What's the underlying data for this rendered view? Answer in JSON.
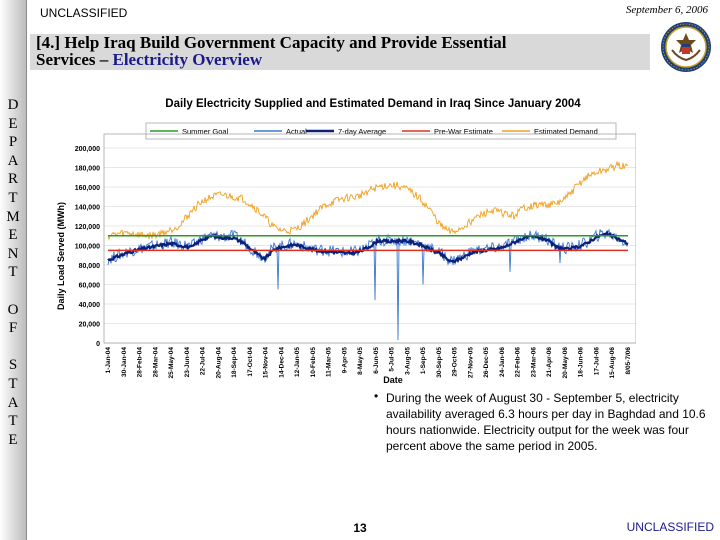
{
  "header": {
    "classification": "UNCLASSIFIED",
    "date": "September 6, 2006",
    "title_line1": "[4.] Help Iraq Build Government Capacity and Provide Essential",
    "title_line2_prefix": "Services – ",
    "title_line2_accent": "Electricity Overview"
  },
  "sidebar": {
    "letters": [
      "D",
      "E",
      "P",
      "A",
      "R",
      "T",
      "M",
      "E",
      "N",
      "T",
      " ",
      "O",
      "F",
      " ",
      "S",
      "T",
      "A",
      "T",
      "E"
    ]
  },
  "bullet": {
    "symbol": "•",
    "text": "During the week of August 30 - September 5, electricity availability averaged 6.3 hours per day in Baghdad and 10.6 hours nationwide.  Electricity output for the week was four percent above the same period in 2005."
  },
  "footer": {
    "page_number": "13",
    "classification": "UNCLASSIFIED"
  },
  "colors": {
    "summer_goal": "#2a9a2a",
    "actual": "#3a78d0",
    "seven_day": "#0c1f7a",
    "pre_war": "#e03020",
    "estimated_demand": "#f0a020",
    "text_accent": "#1a1a8c"
  },
  "chart_data": {
    "type": "line",
    "title": "Daily Electricity Supplied and Estimated Demand in Iraq Since January 2004",
    "xlabel": "Date",
    "ylabel": "Daily Load Served (MWh)",
    "ylim": [
      0,
      200000
    ],
    "yticks": [
      "0",
      "20,000",
      "40,000",
      "60,000",
      "80,000",
      "100,000",
      "120,000",
      "140,000",
      "160,000",
      "180,000",
      "200,000"
    ],
    "xticks": [
      "1-Jan-04",
      "30-Jan-04",
      "28-Feb-04",
      "28-Mar-04",
      "25-May-04",
      "23-Jun-04",
      "22-Jul-04",
      "20-Aug-04",
      "18-Sep-04",
      "17-Oct-04",
      "15-Nov-04",
      "14-Dec-04",
      "12-Jan-05",
      "10-Feb-05",
      "11-Mar-05",
      "9-Apr-05",
      "8-May-05",
      "6-Jun-05",
      "5-Jul-05",
      "3-Aug-05",
      "1-Sep-05",
      "30-Sep-05",
      "29-Oct-05",
      "27-Nov-05",
      "26-Dec-05",
      "24-Jan-06",
      "22-Feb-06",
      "23-Mar-06",
      "21-Apr-06",
      "20-May-06",
      "18-Jun-06",
      "17-Jul-06",
      "15-Aug-06",
      "8/05-7/06"
    ],
    "grid": "horizontal",
    "legend_position": "top",
    "series": [
      {
        "name": "Summer Goal",
        "style": "constant",
        "values": [
          110000,
          110000
        ]
      },
      {
        "name": "Actual",
        "style": "daily",
        "values": [
          86000,
          90000,
          94000,
          97000,
          99000,
          101000,
          103000,
          101000,
          99000,
          107000,
          110000,
          109000,
          110000,
          104000,
          95000,
          88000,
          98000,
          100000,
          102000,
          98000,
          96000,
          95000,
          94000,
          93000,
          94000,
          99000,
          106000,
          105000,
          106000,
          105000,
          102000,
          97000,
          92000,
          84000,
          88000,
          94000,
          96000,
          97000,
          99000,
          104000,
          109000,
          110000,
          108000,
          100000,
          97000,
          99000,
          103000,
          110000,
          113000,
          108000,
          102000
        ],
        "dips": [
          [
            0.327,
            55000
          ],
          [
            0.513,
            44000
          ],
          [
            0.558,
            3000
          ],
          [
            0.606,
            60000
          ],
          [
            0.773,
            73000
          ],
          [
            0.869,
            82000
          ]
        ]
      },
      {
        "name": "7-day Average",
        "style": "smooth",
        "values": [
          85000,
          89000,
          93000,
          96000,
          98000,
          100000,
          102000,
          100000,
          98000,
          106000,
          110000,
          108000,
          108000,
          103000,
          94000,
          86000,
          96000,
          99000,
          101000,
          98000,
          95000,
          94000,
          93000,
          92000,
          93000,
          98000,
          105000,
          104000,
          105000,
          104000,
          101000,
          96000,
          91000,
          83000,
          87000,
          93000,
          95000,
          96000,
          98000,
          103000,
          108000,
          109000,
          107000,
          99000,
          96000,
          98000,
          102000,
          109000,
          112000,
          107000,
          102000
        ]
      },
      {
        "name": "Pre-War Estimate",
        "style": "constant",
        "values": [
          95000,
          95000
        ]
      },
      {
        "name": "Estimated Demand",
        "style": "daily",
        "values": [
          110000,
          112000,
          113000,
          111000,
          110000,
          112000,
          116000,
          122000,
          135000,
          145000,
          150000,
          152000,
          150000,
          148000,
          140000,
          130000,
          118000,
          115000,
          116000,
          124000,
          134000,
          142000,
          146000,
          149000,
          150000,
          156000,
          160000,
          162000,
          161000,
          156000,
          148000,
          136000,
          120000,
          113000,
          118000,
          126000,
          132000,
          136000,
          133000,
          130000,
          139000,
          141000,
          142000,
          142000,
          148000,
          160000,
          170000,
          175000,
          178000,
          182000,
          180000
        ]
      }
    ]
  }
}
